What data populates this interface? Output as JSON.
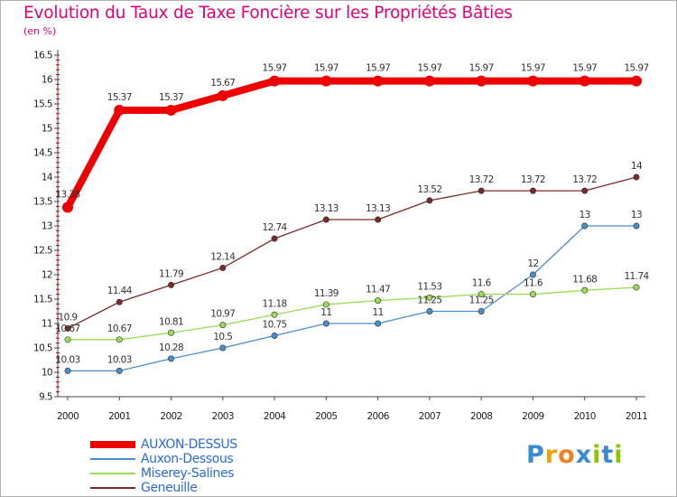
{
  "title": "Evolution du Taux de Taxe Foncière sur les Propriétés Bâties",
  "unit": "(en %)",
  "brand": {
    "letters": [
      "P",
      "r",
      "o",
      "x",
      "i",
      "t",
      "i"
    ],
    "colors": [
      "#3a8ad0",
      "#f0a000",
      "#f08020",
      "#3a8ad0",
      "#8fc400",
      "#3a8ad0",
      "#8fc400"
    ]
  },
  "chart_data": {
    "type": "line",
    "title": "Evolution du Taux de Taxe Foncière sur les Propriétés Bâties",
    "ylabel": "(en %)",
    "xlabel": "",
    "x": [
      "2000",
      "2001",
      "2002",
      "2003",
      "2004",
      "2005",
      "2006",
      "2007",
      "2008",
      "2009",
      "2010",
      "2011"
    ],
    "ylim": [
      9.5,
      16.5
    ],
    "yticks": [
      "9.5",
      "10",
      "10.5",
      "11",
      "11.5",
      "12",
      "12.5",
      "13",
      "13.5",
      "14",
      "14.5",
      "15",
      "15.5",
      "16",
      "16.5"
    ],
    "grid": false,
    "legend": "bottom-left",
    "series": [
      {
        "name": "AUXON-DESSUS",
        "color": "#ee0000",
        "values": [
          13.38,
          15.37,
          15.37,
          15.67,
          15.97,
          15.97,
          15.97,
          15.97,
          15.97,
          15.97,
          15.97,
          15.97
        ],
        "labels": [
          "13.38",
          "15.37",
          "15.37",
          "15.67",
          "15.97",
          "15.97",
          "15.97",
          "15.97",
          "15.97",
          "15.97",
          "15.97",
          "15.97"
        ]
      },
      {
        "name": "Auxon-Dessous",
        "color": "#4a8fcc",
        "values": [
          10.03,
          10.03,
          10.28,
          10.5,
          10.75,
          11,
          11,
          11.25,
          11.25,
          12,
          13,
          13
        ],
        "labels": [
          "10.03",
          "10.03",
          "10.28",
          "10.5",
          "10.75",
          "11",
          "11",
          "11.25",
          "11.25",
          "12",
          "13",
          "13"
        ]
      },
      {
        "name": "Miserey-Salines",
        "color": "#99dd55",
        "values": [
          10.67,
          10.67,
          10.81,
          10.97,
          11.18,
          11.39,
          11.47,
          11.53,
          11.6,
          11.6,
          11.68,
          11.74
        ],
        "labels": [
          "10.67",
          "10.67",
          "10.81",
          "10.97",
          "11.18",
          "11.39",
          "11.47",
          "11.53",
          "11.6",
          "11.6",
          "11.68",
          "11.74"
        ]
      },
      {
        "name": "Geneuille",
        "color": "#7a2a2a",
        "values": [
          10.9,
          11.44,
          11.79,
          12.14,
          12.74,
          13.13,
          13.13,
          13.52,
          13.72,
          13.72,
          13.72,
          14
        ],
        "labels": [
          "10.9",
          "11.44",
          "11.79",
          "12.14",
          "12.74",
          "13.13",
          "13.13",
          "13.52",
          "13.72",
          "13.72",
          "13.72",
          "14"
        ]
      }
    ]
  }
}
